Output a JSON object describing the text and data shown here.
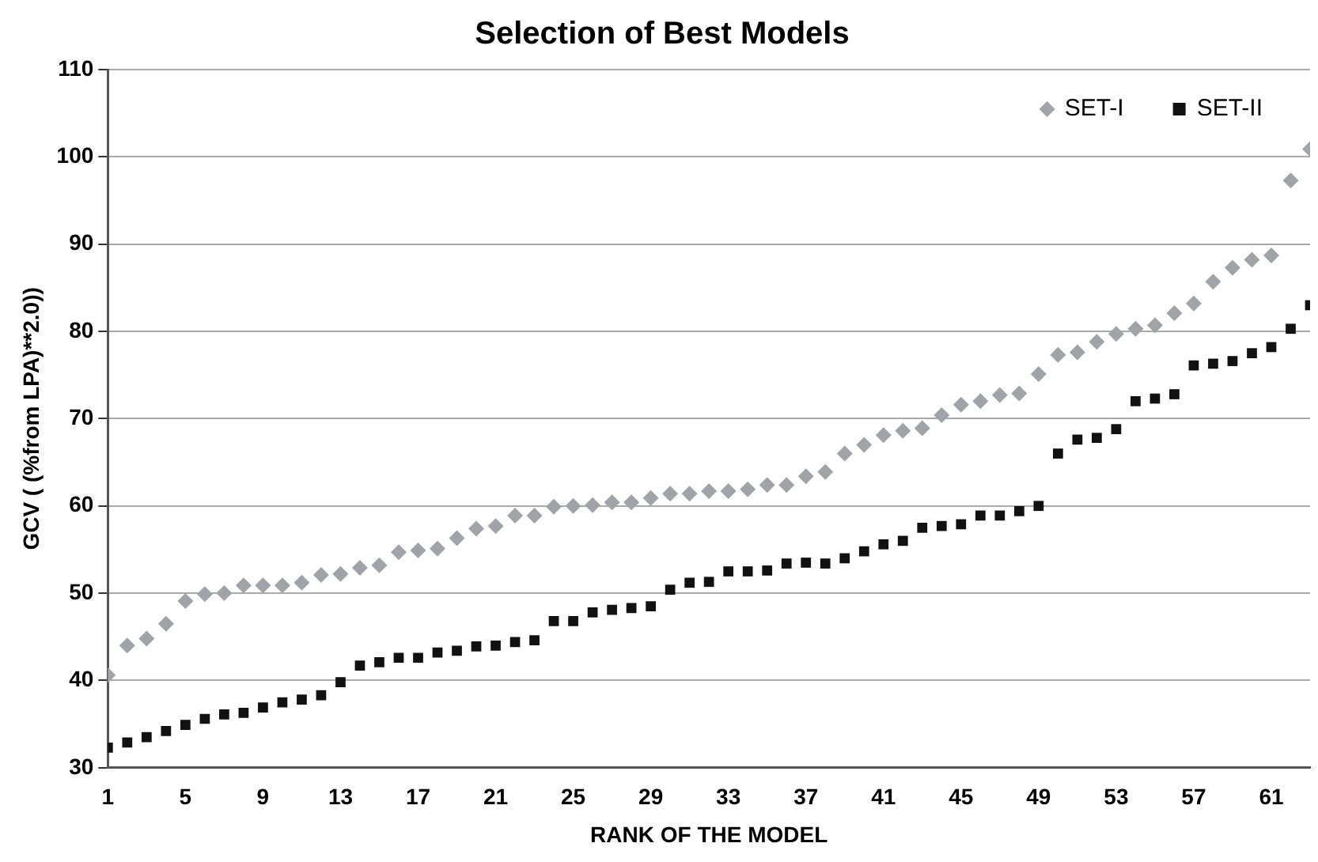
{
  "chart_data": {
    "type": "scatter",
    "title": "Selection of Best Models",
    "xlabel": "RANK OF THE MODEL",
    "ylabel": "GCV ( (%from LPA)**2.0))",
    "x": [
      1,
      2,
      3,
      4,
      5,
      6,
      7,
      8,
      9,
      10,
      11,
      12,
      13,
      14,
      15,
      16,
      17,
      18,
      19,
      20,
      21,
      22,
      23,
      24,
      25,
      26,
      27,
      28,
      29,
      30,
      31,
      32,
      33,
      34,
      35,
      36,
      37,
      38,
      39,
      40,
      41,
      42,
      43,
      44,
      45,
      46,
      47,
      48,
      49,
      50,
      51,
      52,
      53,
      54,
      55,
      56,
      57,
      58,
      59,
      60,
      61,
      62,
      63
    ],
    "series": [
      {
        "name": "SET-I",
        "color": "#a0a4a8",
        "marker": "diamond",
        "values": [
          40.6,
          44,
          44.8,
          46.5,
          49.1,
          49.9,
          50,
          50.9,
          50.9,
          50.9,
          51.2,
          52.1,
          52.2,
          52.9,
          53.2,
          54.7,
          54.9,
          55.1,
          56.3,
          57.4,
          57.7,
          58.9,
          58.9,
          59.9,
          60,
          60.1,
          60.4,
          60.4,
          60.9,
          61.4,
          61.4,
          61.7,
          61.7,
          61.9,
          62.4,
          62.4,
          63.4,
          63.9,
          66,
          67,
          68.1,
          68.6,
          68.9,
          70.4,
          71.6,
          72,
          72.7,
          72.9,
          75.1,
          77.3,
          77.6,
          78.8,
          79.7,
          80.3,
          80.7,
          82.1,
          83.2,
          85.7,
          87.3,
          88.2,
          88.7,
          97.3,
          100.9
        ]
      },
      {
        "name": "SET-II",
        "color": "#111111",
        "marker": "square",
        "values": [
          32.3,
          32.9,
          33.5,
          34.2,
          34.9,
          35.6,
          36.1,
          36.3,
          36.9,
          37.5,
          37.8,
          38.3,
          39.8,
          41.7,
          42.1,
          42.6,
          42.6,
          43.2,
          43.4,
          43.9,
          44,
          44.4,
          44.6,
          46.8,
          46.8,
          47.8,
          48.1,
          48.3,
          48.5,
          50.4,
          51.2,
          51.3,
          52.5,
          52.5,
          52.6,
          53.4,
          53.5,
          53.4,
          54,
          54.8,
          55.6,
          56,
          57.5,
          57.7,
          57.9,
          58.9,
          58.9,
          59.4,
          60,
          66,
          67.6,
          67.8,
          68.8,
          72,
          72.3,
          72.8,
          76.1,
          76.3,
          76.6,
          77.5,
          78.2,
          80.3,
          83
        ]
      }
    ],
    "xlim": [
      1,
      63
    ],
    "xticks": [
      1,
      5,
      9,
      13,
      17,
      21,
      25,
      29,
      33,
      37,
      41,
      45,
      49,
      53,
      57,
      61
    ],
    "ylim": [
      30,
      110
    ],
    "yticks": [
      30,
      40,
      50,
      60,
      70,
      80,
      90,
      100,
      110
    ],
    "grid": "y",
    "legend": "top right"
  }
}
